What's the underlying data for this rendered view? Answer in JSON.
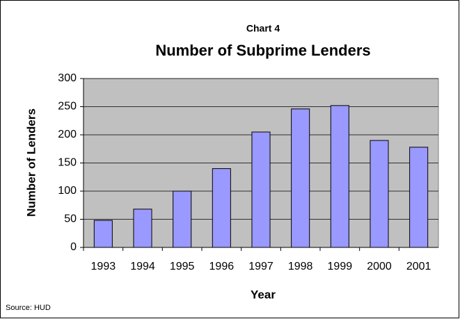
{
  "chart_data": {
    "type": "bar",
    "subtitle": "Chart 4",
    "title": "Number of Subprime Lenders",
    "x_label": "Year",
    "y_label": "Number of Lenders",
    "source": "Source: HUD",
    "categories": [
      "1993",
      "1994",
      "1995",
      "1996",
      "1997",
      "1998",
      "1999",
      "2000",
      "2001"
    ],
    "values": [
      48,
      68,
      100,
      140,
      205,
      246,
      252,
      190,
      178
    ],
    "color": "#9999ff",
    "plot_background": "#c0c0c0",
    "ylim": [
      0,
      300
    ],
    "yticks": [
      0,
      50,
      100,
      150,
      200,
      250,
      300
    ],
    "grid": true
  }
}
